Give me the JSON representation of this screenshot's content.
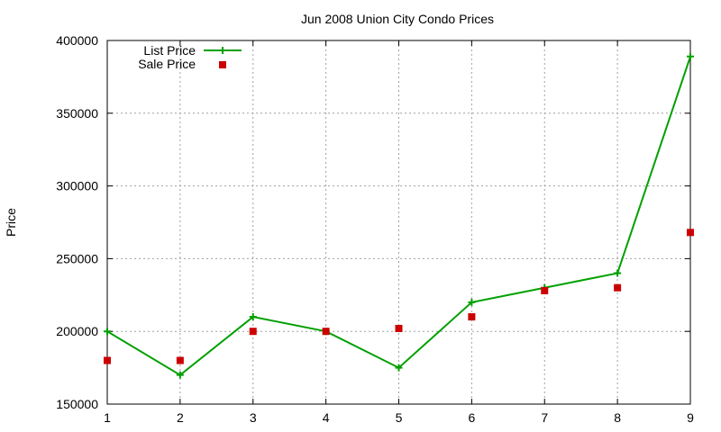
{
  "chart_data": {
    "type": "line",
    "title": "Jun 2008 Union City Condo Prices",
    "xlabel": "",
    "ylabel": "Price",
    "x": [
      1,
      2,
      3,
      4,
      5,
      6,
      7,
      8,
      9
    ],
    "xlim": [
      1,
      9
    ],
    "ylim": [
      150000,
      400000
    ],
    "xticks": [
      "1",
      "2",
      "3",
      "4",
      "5",
      "6",
      "7",
      "8",
      "9"
    ],
    "yticks": [
      "150000",
      "200000",
      "250000",
      "300000",
      "350000",
      "400000"
    ],
    "grid": true,
    "legend_position": "top-left",
    "series": [
      {
        "name": "List Price",
        "style": "line-with-plus-markers",
        "color": "#00a000",
        "values": [
          200000,
          170000,
          210000,
          200000,
          175000,
          220000,
          230000,
          240000,
          389000
        ]
      },
      {
        "name": "Sale Price",
        "style": "square-markers",
        "color": "#cc0000",
        "values": [
          180000,
          180000,
          200000,
          200000,
          202000,
          210000,
          228000,
          230000,
          268000
        ]
      }
    ]
  }
}
